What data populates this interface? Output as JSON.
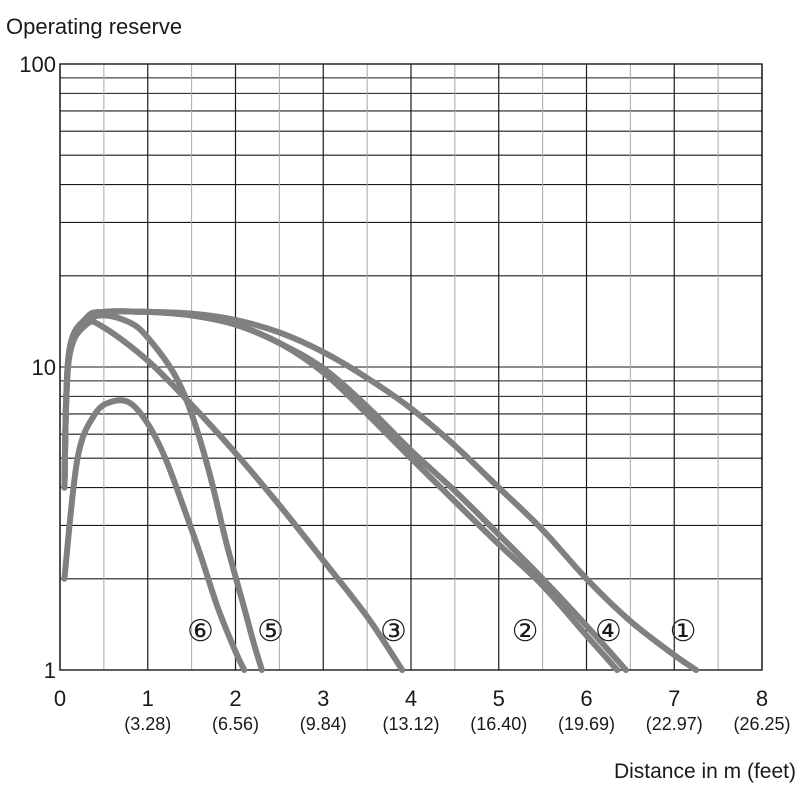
{
  "chart_data": {
    "type": "line",
    "ylabel": "Operating reserve",
    "xlabel": "Distance in m (feet)",
    "x_scale": "linear",
    "y_scale": "log",
    "xlim": [
      0,
      8
    ],
    "ylim": [
      1,
      100
    ],
    "x_ticks": [
      {
        "value": 0,
        "label": "0",
        "sub": ""
      },
      {
        "value": 1,
        "label": "1",
        "sub": "(3.28)"
      },
      {
        "value": 2,
        "label": "2",
        "sub": "(6.56)"
      },
      {
        "value": 3,
        "label": "3",
        "sub": "(9.84)"
      },
      {
        "value": 4,
        "label": "4",
        "sub": "(13.12)"
      },
      {
        "value": 5,
        "label": "5",
        "sub": "(16.40)"
      },
      {
        "value": 6,
        "label": "6",
        "sub": "(19.69)"
      },
      {
        "value": 7,
        "label": "7",
        "sub": "(22.97)"
      },
      {
        "value": 8,
        "label": "8",
        "sub": "(26.25)"
      }
    ],
    "y_ticks": [
      {
        "value": 1,
        "label": "1"
      },
      {
        "value": 10,
        "label": "10"
      },
      {
        "value": 100,
        "label": "100"
      }
    ],
    "grid": true,
    "line_color": "#808080",
    "series": [
      {
        "marker": "①",
        "marker_x": 7.1,
        "points": [
          [
            0.05,
            4.0
          ],
          [
            0.1,
            11.0
          ],
          [
            0.3,
            14.5
          ],
          [
            0.5,
            15.2
          ],
          [
            1.0,
            15.2
          ],
          [
            1.5,
            15.0
          ],
          [
            2.0,
            14.3
          ],
          [
            2.5,
            13.0
          ],
          [
            3.0,
            11.2
          ],
          [
            3.5,
            9.2
          ],
          [
            4.0,
            7.3
          ],
          [
            4.5,
            5.5
          ],
          [
            5.0,
            4.0
          ],
          [
            5.5,
            2.9
          ],
          [
            6.0,
            2.0
          ],
          [
            6.5,
            1.45
          ],
          [
            7.0,
            1.12
          ],
          [
            7.25,
            1.0
          ]
        ]
      },
      {
        "marker": "②",
        "marker_x": 5.3,
        "points": [
          [
            0.05,
            4.0
          ],
          [
            0.1,
            11.0
          ],
          [
            0.3,
            14.5
          ],
          [
            0.5,
            15.2
          ],
          [
            1.0,
            15.2
          ],
          [
            1.5,
            14.8
          ],
          [
            2.0,
            13.8
          ],
          [
            2.5,
            12.0
          ],
          [
            3.0,
            9.6
          ],
          [
            3.5,
            7.0
          ],
          [
            4.0,
            5.0
          ],
          [
            4.5,
            3.6
          ],
          [
            5.0,
            2.6
          ],
          [
            5.5,
            1.9
          ],
          [
            6.0,
            1.3
          ],
          [
            6.35,
            1.0
          ]
        ]
      },
      {
        "marker": "③",
        "marker_x": 3.8,
        "points": [
          [
            0.05,
            4.0
          ],
          [
            0.1,
            10.5
          ],
          [
            0.3,
            13.8
          ],
          [
            0.5,
            13.5
          ],
          [
            1.0,
            10.5
          ],
          [
            1.5,
            7.5
          ],
          [
            2.0,
            5.2
          ],
          [
            2.5,
            3.5
          ],
          [
            3.0,
            2.3
          ],
          [
            3.5,
            1.5
          ],
          [
            3.9,
            1.0
          ]
        ]
      },
      {
        "marker": "④",
        "marker_x": 6.25,
        "points": [
          [
            0.05,
            4.0
          ],
          [
            0.1,
            11.0
          ],
          [
            0.3,
            14.5
          ],
          [
            0.5,
            15.2
          ],
          [
            1.0,
            15.2
          ],
          [
            1.5,
            14.8
          ],
          [
            2.0,
            13.8
          ],
          [
            2.5,
            12.0
          ],
          [
            3.0,
            9.9
          ],
          [
            3.5,
            7.4
          ],
          [
            4.0,
            5.3
          ],
          [
            4.5,
            3.9
          ],
          [
            5.0,
            2.8
          ],
          [
            5.5,
            2.0
          ],
          [
            6.0,
            1.4
          ],
          [
            6.45,
            1.0
          ]
        ]
      },
      {
        "marker": "⑤",
        "marker_x": 2.4,
        "points": [
          [
            0.05,
            4.0
          ],
          [
            0.1,
            10.8
          ],
          [
            0.3,
            14.0
          ],
          [
            0.5,
            14.8
          ],
          [
            0.8,
            14.0
          ],
          [
            1.0,
            12.5
          ],
          [
            1.3,
            9.5
          ],
          [
            1.5,
            7.0
          ],
          [
            1.7,
            4.5
          ],
          [
            1.9,
            2.6
          ],
          [
            2.1,
            1.6
          ],
          [
            2.2,
            1.25
          ],
          [
            2.3,
            1.0
          ]
        ]
      },
      {
        "marker": "⑥",
        "marker_x": 1.6,
        "points": [
          [
            0.05,
            2.0
          ],
          [
            0.2,
            5.0
          ],
          [
            0.4,
            7.0
          ],
          [
            0.6,
            7.7
          ],
          [
            0.8,
            7.6
          ],
          [
            1.0,
            6.5
          ],
          [
            1.2,
            5.0
          ],
          [
            1.4,
            3.5
          ],
          [
            1.6,
            2.4
          ],
          [
            1.8,
            1.6
          ],
          [
            2.0,
            1.15
          ],
          [
            2.1,
            1.0
          ]
        ]
      }
    ]
  }
}
